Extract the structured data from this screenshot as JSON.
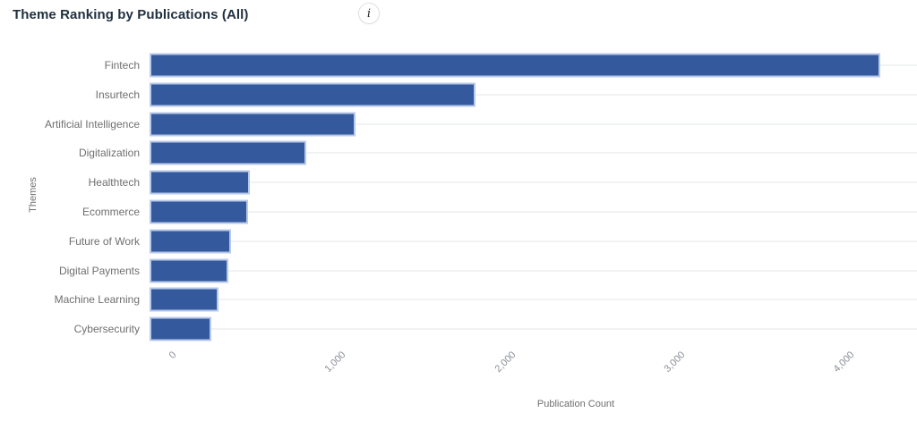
{
  "header": {
    "title": "Theme Ranking by Publications (All)",
    "info_icon_glyph": "i"
  },
  "chart_data": {
    "type": "bar",
    "orientation": "horizontal",
    "title": "Theme Ranking by Publications (All)",
    "categories": [
      "Fintech",
      "Insurtech",
      "Artificial Intelligence",
      "Digitalization",
      "Healthtech",
      "Ecommerce",
      "Future of Work",
      "Digital Payments",
      "Machine Learning",
      "Cybersecurity"
    ],
    "values": [
      4310,
      1925,
      1215,
      925,
      590,
      580,
      480,
      465,
      405,
      365
    ],
    "xlabel": "Publication Count",
    "ylabel": "Themes",
    "xlim": [
      0,
      4475
    ],
    "xticks": [
      0,
      1000,
      2000,
      3000,
      4000
    ],
    "xtick_labels": [
      "0",
      "1,000",
      "2,000",
      "3,000",
      "4,000"
    ],
    "legend": "none",
    "grid": "horizontal-category-lines",
    "bar_color": "#345a9d",
    "bar_border_color": "#b8c9ea",
    "gridline_color": "#f1f2f3"
  }
}
